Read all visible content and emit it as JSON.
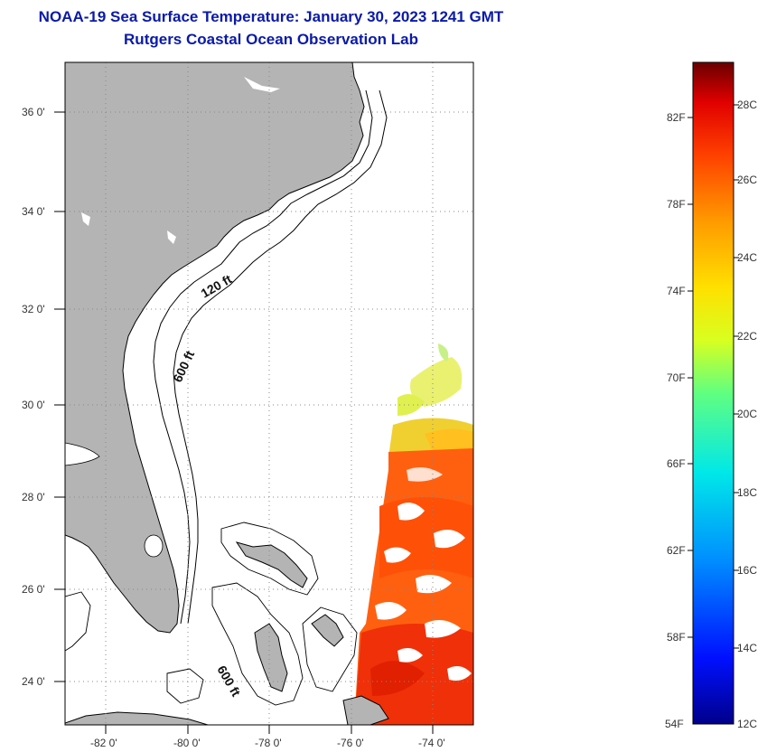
{
  "header": {
    "title": "NOAA-19 Sea Surface Temperature:  January 30, 2023 1241 GMT",
    "subtitle": "Rutgers Coastal Ocean Observation Lab"
  },
  "map": {
    "lon_range": [
      -83,
      -73
    ],
    "lat_range": [
      23,
      37.1
    ],
    "lat_labels": [
      "24 0'",
      "26 0'",
      "28 0'",
      "30 0'",
      "32 0'",
      "34 0'",
      "36 0'"
    ],
    "lon_labels": [
      "-82 0'",
      "-80 0'",
      "-78 0'",
      "-76 0'",
      "-74 0'"
    ],
    "depth_labels": [
      "120 ft",
      "600 ft",
      "600 ft"
    ],
    "colors": {
      "land": "#b4b4b4",
      "coast": "#000000",
      "grid": "#888888"
    }
  },
  "colorbar": {
    "fahrenheit_labels": [
      "82F",
      "78F",
      "74F",
      "70F",
      "66F",
      "62F",
      "58F",
      "54F"
    ],
    "celsius_labels": [
      "28C",
      "26C",
      "24C",
      "22C",
      "20C",
      "18C",
      "16C",
      "14C",
      "12C"
    ],
    "range_c": [
      12,
      29.2
    ]
  }
}
